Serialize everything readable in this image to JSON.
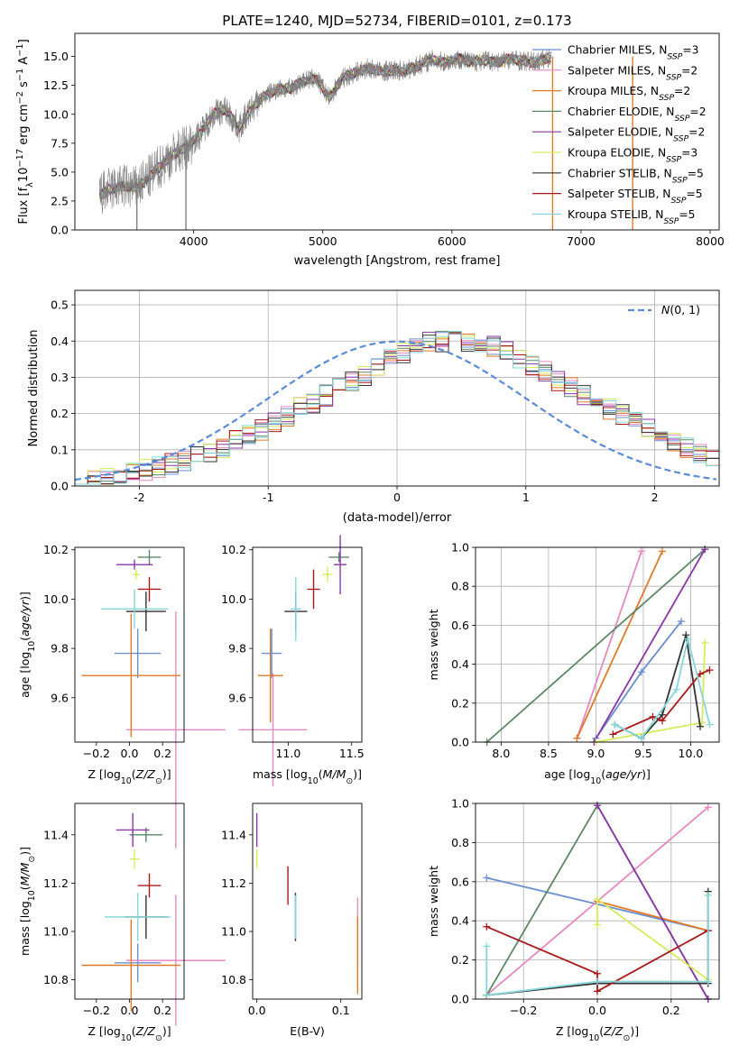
{
  "colors": {
    "Chabrier MILES": "#6b8ecf",
    "Salpeter MILES": "#e58ac1",
    "Kroupa MILES": "#df7b28",
    "Chabrier ELODIE": "#5c8866",
    "Salpeter ELODIE": "#8a36a6",
    "Kroupa ELODIE": "#d6ea5c",
    "Chabrier STELIB": "#333333",
    "Salpeter STELIB": "#a81a1a",
    "Kroupa STELIB": "#86d6d9"
  },
  "chart_data": [
    {
      "id": "spectrum",
      "type": "line",
      "title": "PLATE=1240, MJD=52734, FIBERID=0101, z=0.173",
      "xlabel": "wavelength [Angstrom, rest frame]",
      "ylabel": "Flux [f_λ10^-17 erg cm^-2 s^-1 A^-1]",
      "xlim": [
        3080,
        8070
      ],
      "ylim": [
        0,
        17
      ],
      "xticks": [
        4000,
        5000,
        6000,
        7000,
        8000
      ],
      "yticks": [
        0.0,
        2.5,
        5.0,
        7.5,
        10.0,
        12.5,
        15.0
      ],
      "grid": false,
      "legend_position": "right",
      "data_color": "#808080",
      "wavelength": [
        3270,
        3350,
        3450,
        3550,
        3650,
        3750,
        3850,
        3950,
        4050,
        4150,
        4250,
        4350,
        4450,
        4550,
        4650,
        4750,
        4850,
        4950,
        5050,
        5150,
        5250,
        5350,
        5450,
        5550,
        5650,
        5750,
        5850,
        5950,
        6050,
        6150,
        6250,
        6350,
        6450,
        6550,
        6650,
        6750
      ],
      "model_flux": [
        3.0,
        3.5,
        3.8,
        3.6,
        4.5,
        5.6,
        6.6,
        7.2,
        8.3,
        10.0,
        10.4,
        8.8,
        10.5,
        11.6,
        12.2,
        12.2,
        12.9,
        13.1,
        11.4,
        13.1,
        13.6,
        14.0,
        13.7,
        13.8,
        13.8,
        14.3,
        14.7,
        14.5,
        14.8,
        14.5,
        14.7,
        14.5,
        14.8,
        14.6,
        14.5,
        14.9
      ],
      "series": [
        {
          "name": "Chabrier MILES, N_SSP=3",
          "ssp": "3"
        },
        {
          "name": "Salpeter MILES, N_SSP=2",
          "ssp": "2"
        },
        {
          "name": "Kroupa MILES, N_SSP=2",
          "ssp": "2"
        },
        {
          "name": "Chabrier ELODIE, N_SSP=2",
          "ssp": "2"
        },
        {
          "name": "Salpeter ELODIE, N_SSP=2",
          "ssp": "2"
        },
        {
          "name": "Kroupa ELODIE, N_SSP=3",
          "ssp": "3"
        },
        {
          "name": "Chabrier STELIB, N_SSP=5",
          "ssp": "5"
        },
        {
          "name": "Salpeter STELIB, N_SSP=5",
          "ssp": "5"
        },
        {
          "name": "Kroupa STELIB, N_SSP=5",
          "ssp": "5"
        }
      ]
    },
    {
      "id": "residuals",
      "type": "step-histogram",
      "xlabel": "(data-model)/error",
      "ylabel": "Normed distribution",
      "xlim": [
        -2.5,
        2.5
      ],
      "ylim": [
        0,
        0.54
      ],
      "xticks": [
        -2,
        -1,
        0,
        1,
        2
      ],
      "yticks": [
        0.0,
        0.1,
        0.2,
        0.3,
        0.4,
        0.5
      ],
      "grid": true,
      "legend": "N(0,1)",
      "legend_position": "top-right",
      "bin_width": 0.1,
      "bin_start": -2.5,
      "reference_values": [
        0.017,
        0.02,
        0.025,
        0.03,
        0.036,
        0.044,
        0.052,
        0.06,
        0.069,
        0.08,
        0.092,
        0.107,
        0.124,
        0.143,
        0.155,
        0.175,
        0.195,
        0.215,
        0.23,
        0.25,
        0.27,
        0.285,
        0.305,
        0.33,
        0.355,
        0.37,
        0.385,
        0.395,
        0.4,
        0.405,
        0.4,
        0.395,
        0.385,
        0.375,
        0.355,
        0.335,
        0.315,
        0.29,
        0.27,
        0.25,
        0.23,
        0.21,
        0.195,
        0.175,
        0.155,
        0.14,
        0.12,
        0.105,
        0.09,
        0.075
      ]
    },
    {
      "id": "age-vs-Z",
      "type": "errorbar",
      "xlabel": "Z [log10(Z/Z⊙)]",
      "ylabel": "age [log10(age/yr)]",
      "xlim": [
        -0.33,
        0.33
      ],
      "ylim": [
        9.42,
        10.21
      ],
      "xticks": [
        -0.2,
        0.0,
        0.2
      ],
      "xticklabels": [
        "−0.2",
        "0.0",
        "0.2"
      ],
      "yticks": [
        9.6,
        9.8,
        10.0,
        10.2
      ],
      "grid": false,
      "points": [
        {
          "series": "Chabrier MILES",
          "x": 0.05,
          "xerr": 0.14,
          "y": 9.78,
          "yerr": 0.1
        },
        {
          "series": "Salpeter MILES",
          "x": 0.28,
          "xerr": 0.3,
          "y": 9.47,
          "yerr": 0.48
        },
        {
          "series": "Kroupa MILES",
          "x": 0.01,
          "xerr": 0.3,
          "y": 9.69,
          "yerr": 0.25
        },
        {
          "series": "Chabrier ELODIE",
          "x": 0.12,
          "xerr": 0.07,
          "y": 10.17,
          "yerr": 0.03
        },
        {
          "series": "Salpeter ELODIE",
          "x": 0.03,
          "xerr": 0.11,
          "y": 10.14,
          "yerr": 0.02
        },
        {
          "series": "Kroupa ELODIE",
          "x": 0.04,
          "xerr": 0.02,
          "y": 10.1,
          "yerr": 0.02
        },
        {
          "series": "Chabrier STELIB",
          "x": 0.1,
          "xerr": 0.12,
          "y": 9.95,
          "yerr": 0.08
        },
        {
          "series": "Salpeter STELIB",
          "x": 0.12,
          "xerr": 0.07,
          "y": 10.04,
          "yerr": 0.05
        },
        {
          "series": "Kroupa STELIB",
          "x": 0.03,
          "xerr": 0.2,
          "y": 9.96,
          "yerr": 0.08
        }
      ]
    },
    {
      "id": "age-vs-mass",
      "type": "errorbar",
      "xlabel": "mass [log10(M/M⊙)]",
      "xlim": [
        10.72,
        11.58
      ],
      "ylim": [
        9.42,
        10.21
      ],
      "xticks": [
        11.0,
        11.5
      ],
      "yticks": [
        9.6,
        9.8,
        10.0,
        10.2
      ],
      "grid": false,
      "points": [
        {
          "series": "Chabrier MILES",
          "x": 10.87,
          "xerr": 0.08,
          "y": 9.78,
          "yerr": 0.1
        },
        {
          "series": "Salpeter MILES",
          "x": 10.88,
          "xerr": 0.27,
          "y": 9.47,
          "yerr": 0.23
        },
        {
          "series": "Kroupa MILES",
          "x": 10.86,
          "xerr": 0.1,
          "y": 9.69,
          "yerr": 0.19
        },
        {
          "series": "Chabrier ELODIE",
          "x": 11.4,
          "xerr": 0.08,
          "y": 10.17,
          "yerr": 0.02
        },
        {
          "series": "Salpeter ELODIE",
          "x": 11.41,
          "xerr": 0.05,
          "y": 10.14,
          "yerr": 0.12
        },
        {
          "series": "Kroupa ELODIE",
          "x": 11.31,
          "xerr": 0.04,
          "y": 10.1,
          "yerr": 0.03
        },
        {
          "series": "Chabrier STELIB",
          "x": 11.06,
          "xerr": 0.09,
          "y": 9.95,
          "yerr": 0.08
        },
        {
          "series": "Salpeter STELIB",
          "x": 11.2,
          "xerr": 0.05,
          "y": 10.04,
          "yerr": 0.08
        },
        {
          "series": "Kroupa STELIB",
          "x": 11.06,
          "xerr": 0.04,
          "y": 9.96,
          "yerr": 0.13
        }
      ]
    },
    {
      "id": "weight-vs-age",
      "type": "line",
      "xlabel": "age [log10(age/yr)]",
      "ylabel": "mass weight",
      "xlim": [
        7.73,
        10.3
      ],
      "ylim": [
        0,
        1
      ],
      "xticks": [
        8.0,
        8.5,
        9.0,
        9.5,
        10.0
      ],
      "yticks": [
        0.0,
        0.2,
        0.4,
        0.6,
        0.8,
        1.0
      ],
      "grid": true,
      "series": [
        {
          "name": "Chabrier MILES",
          "x": [
            9.0,
            9.48,
            9.9
          ],
          "y": [
            0.02,
            0.36,
            0.62
          ]
        },
        {
          "name": "Salpeter MILES",
          "x": [
            8.8,
            9.48
          ],
          "y": [
            0.02,
            0.98
          ]
        },
        {
          "name": "Kroupa MILES",
          "x": [
            8.8,
            9.7
          ],
          "y": [
            0.02,
            0.98
          ]
        },
        {
          "name": "Chabrier ELODIE",
          "x": [
            7.85,
            10.15
          ],
          "y": [
            0.0,
            0.99
          ]
        },
        {
          "name": "Salpeter ELODIE",
          "x": [
            8.98,
            10.15
          ],
          "y": [
            0.0,
            0.99
          ]
        },
        {
          "name": "Kroupa ELODIE",
          "x": [
            9.0,
            10.12,
            10.15
          ],
          "y": [
            0.0,
            0.1,
            0.51
          ]
        },
        {
          "name": "Chabrier STELIB",
          "x": [
            9.2,
            9.48,
            9.7,
            9.95,
            10.1
          ],
          "y": [
            0.09,
            0.02,
            0.14,
            0.55,
            0.08
          ]
        },
        {
          "name": "Salpeter STELIB",
          "x": [
            9.18,
            9.6,
            9.7,
            10.1,
            10.2
          ],
          "y": [
            0.04,
            0.13,
            0.11,
            0.35,
            0.37
          ]
        },
        {
          "name": "Kroupa STELIB",
          "x": [
            9.2,
            9.48,
            9.85,
            9.97,
            10.2
          ],
          "y": [
            0.09,
            0.02,
            0.27,
            0.53,
            0.09
          ]
        }
      ]
    },
    {
      "id": "mass-vs-Z",
      "type": "errorbar",
      "xlabel": "Z [log10(Z/Z⊙)]",
      "ylabel": "mass [log10(M/M⊙)]",
      "xlim": [
        -0.33,
        0.33
      ],
      "ylim": [
        10.72,
        11.53
      ],
      "xticks": [
        -0.2,
        0.0,
        0.2
      ],
      "xticklabels": [
        "−0.2",
        "0.0",
        "0.2"
      ],
      "yticks": [
        10.8,
        11.0,
        11.2,
        11.4
      ],
      "grid": false,
      "points": [
        {
          "series": "Chabrier MILES",
          "x": 0.05,
          "xerr": 0.14,
          "y": 10.87,
          "yerr": 0.08
        },
        {
          "series": "Salpeter MILES",
          "x": 0.28,
          "xerr": 0.3,
          "y": 10.88,
          "yerr": 0.27
        },
        {
          "series": "Kroupa MILES",
          "x": 0.01,
          "xerr": 0.3,
          "y": 10.86,
          "yerr": 0.19
        },
        {
          "series": "Chabrier ELODIE",
          "x": 0.1,
          "xerr": 0.1,
          "y": 11.4,
          "yerr": 0.03
        },
        {
          "series": "Salpeter ELODIE",
          "x": 0.02,
          "xerr": 0.1,
          "y": 11.42,
          "yerr": 0.07
        },
        {
          "series": "Kroupa ELODIE",
          "x": 0.03,
          "xerr": 0.03,
          "y": 11.3,
          "yerr": 0.04
        },
        {
          "series": "Chabrier STELIB",
          "x": 0.1,
          "xerr": 0.13,
          "y": 11.06,
          "yerr": 0.09
        },
        {
          "series": "Salpeter STELIB",
          "x": 0.12,
          "xerr": 0.07,
          "y": 11.19,
          "yerr": 0.05
        },
        {
          "series": "Kroupa STELIB",
          "x": 0.05,
          "xerr": 0.2,
          "y": 11.06,
          "yerr": 0.1
        }
      ]
    },
    {
      "id": "mass-vs-EBV",
      "type": "errorbar",
      "xlabel": "E(B-V)",
      "xlim": [
        -0.005,
        0.125
      ],
      "ylim": [
        10.72,
        11.53
      ],
      "xticks": [
        0.0,
        0.1
      ],
      "yticks": [
        10.8,
        11.0,
        11.2,
        11.4
      ],
      "grid": false,
      "points": [
        {
          "series": "Salpeter MILES",
          "x": 0.12,
          "xerr": 0.0,
          "y": 11.0,
          "yerr": 0.14
        },
        {
          "series": "Kroupa MILES",
          "x": 0.12,
          "xerr": 0.0,
          "y": 10.9,
          "yerr": 0.16
        },
        {
          "series": "Salpeter ELODIE",
          "x": 0.0,
          "xerr": 0.0,
          "y": 11.42,
          "yerr": 0.07
        },
        {
          "series": "Kroupa ELODIE",
          "x": 0.0,
          "xerr": 0.0,
          "y": 11.3,
          "yerr": 0.04
        },
        {
          "series": "Chabrier STELIB",
          "x": 0.046,
          "xerr": 0.0,
          "y": 11.06,
          "yerr": 0.1
        },
        {
          "series": "Salpeter STELIB",
          "x": 0.037,
          "xerr": 0.0,
          "y": 11.19,
          "yerr": 0.08
        },
        {
          "series": "Kroupa STELIB",
          "x": 0.046,
          "xerr": 0.0,
          "y": 11.06,
          "yerr": 0.09
        }
      ]
    },
    {
      "id": "weight-vs-Z",
      "type": "line",
      "xlabel": "Z [log10(Z/Z⊙)]",
      "ylabel": "mass weight",
      "xlim": [
        -0.33,
        0.33
      ],
      "ylim": [
        0,
        1
      ],
      "xticks": [
        -0.2,
        0.0,
        0.2
      ],
      "xticklabels": [
        "−0.2",
        "0.0",
        "0.2"
      ],
      "yticks": [
        0.0,
        0.2,
        0.4,
        0.6,
        0.8,
        1.0
      ],
      "grid": true,
      "series": [
        {
          "name": "Chabrier MILES",
          "x": [
            -0.3,
            0.3
          ],
          "y": [
            0.62,
            0.35
          ]
        },
        {
          "name": "Salpeter MILES",
          "x": [
            -0.3,
            0.3
          ],
          "y": [
            0.02,
            0.98
          ]
        },
        {
          "name": "Kroupa MILES",
          "x": [
            0.0,
            0.3
          ],
          "y": [
            0.5,
            0.35
          ]
        },
        {
          "name": "Chabrier ELODIE",
          "x": [
            -0.3,
            0.0,
            0.3
          ],
          "y": [
            0.02,
            0.99,
            0.0
          ]
        },
        {
          "name": "Salpeter ELODIE",
          "x": [
            0.0,
            0.3
          ],
          "y": [
            0.99,
            0.0
          ]
        },
        {
          "name": "Kroupa ELODIE",
          "x": [
            0.0,
            0.0,
            0.3
          ],
          "y": [
            0.38,
            0.51,
            0.1
          ]
        },
        {
          "name": "Chabrier STELIB",
          "x": [
            -0.3,
            0.0,
            0.3,
            0.3
          ],
          "y": [
            0.02,
            0.08,
            0.08,
            0.55
          ]
        },
        {
          "name": "Salpeter STELIB",
          "x": [
            -0.3,
            0.0,
            0.0,
            0.3
          ],
          "y": [
            0.37,
            0.13,
            0.04,
            0.35
          ]
        },
        {
          "name": "Kroupa STELIB",
          "x": [
            -0.3,
            -0.3,
            0.0,
            0.3,
            0.3
          ],
          "y": [
            0.27,
            0.02,
            0.09,
            0.09,
            0.53
          ]
        }
      ]
    }
  ]
}
